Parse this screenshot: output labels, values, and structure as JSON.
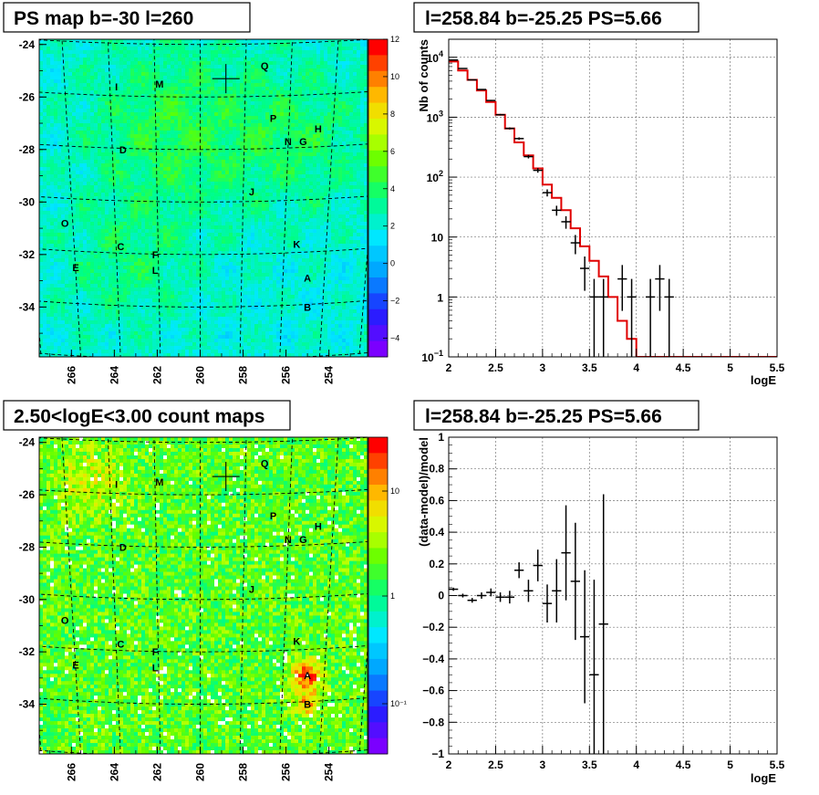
{
  "chart_data": [
    {
      "type": "heatmap",
      "title": "PS map b=-30 l=260",
      "x_ticks": [
        "266",
        "264",
        "262",
        "260",
        "258",
        "256",
        "254"
      ],
      "y_ticks": [
        "-24",
        "-26",
        "-28",
        "-30",
        "-32",
        "-34"
      ],
      "xlim": [
        267.5,
        252.2
      ],
      "ylim": [
        -35.9,
        -23.8
      ],
      "z_ticks": [
        "12",
        "10",
        "8",
        "6",
        "4",
        "2",
        "0",
        "−2",
        "−4"
      ],
      "zlim": [
        -5,
        12
      ],
      "crosshair": {
        "x": 258.8,
        "y": -25.3
      },
      "sources": [
        {
          "label": "Q",
          "x": 257.0,
          "y": -24.8
        },
        {
          "label": "I",
          "x": 263.9,
          "y": -25.6
        },
        {
          "label": "M",
          "x": 261.9,
          "y": -25.5
        },
        {
          "label": "P",
          "x": 256.6,
          "y": -26.8
        },
        {
          "label": "H",
          "x": 254.5,
          "y": -27.2
        },
        {
          "label": "N",
          "x": 255.9,
          "y": -27.7
        },
        {
          "label": "G",
          "x": 255.2,
          "y": -27.7
        },
        {
          "label": "D",
          "x": 263.6,
          "y": -28.0
        },
        {
          "label": "J",
          "x": 257.6,
          "y": -29.6
        },
        {
          "label": "O",
          "x": 266.3,
          "y": -30.8
        },
        {
          "label": "C",
          "x": 263.7,
          "y": -31.7
        },
        {
          "label": "K",
          "x": 255.5,
          "y": -31.6
        },
        {
          "label": "F",
          "x": 262.1,
          "y": -32.0
        },
        {
          "label": "E",
          "x": 265.8,
          "y": -32.5
        },
        {
          "label": "L",
          "x": 262.1,
          "y": -32.6
        },
        {
          "label": "A",
          "x": 255.0,
          "y": -32.9
        },
        {
          "label": "B",
          "x": 255.0,
          "y": -34.0
        }
      ]
    },
    {
      "type": "line",
      "title": "l=258.84 b=-25.25 PS=5.66",
      "xlabel": "logE",
      "ylabel": "Nb of counts",
      "xlim": [
        2,
        5.5
      ],
      "ylim": [
        0.1,
        20000
      ],
      "yscale": "log",
      "grid": true,
      "x_ticks": [
        "2",
        "2.5",
        "3",
        "3.5",
        "4",
        "4.5",
        "5",
        "5.5"
      ],
      "y_ticks": [
        {
          "v": 10000,
          "b": "10",
          "e": "4"
        },
        {
          "v": 1000,
          "b": "10",
          "e": "3"
        },
        {
          "v": 100,
          "b": "10",
          "e": "2"
        },
        {
          "v": 10,
          "b": "10",
          "e": ""
        },
        {
          "v": 1,
          "b": "1",
          "e": ""
        },
        {
          "v": 0.1,
          "b": "10",
          "e": "−1"
        }
      ],
      "bin_edges": [
        2.0,
        2.1,
        2.2,
        2.3,
        2.4,
        2.5,
        2.6,
        2.7,
        2.8,
        2.9,
        3.0,
        3.1,
        3.2,
        3.3,
        3.4,
        3.5,
        3.6,
        3.7,
        3.8,
        3.9,
        4.0,
        4.1,
        4.2,
        4.3,
        4.4,
        4.5,
        4.6,
        4.7,
        4.8,
        4.9,
        5.0,
        5.1,
        5.2,
        5.3,
        5.4,
        5.5
      ],
      "series": [
        {
          "kind": "model",
          "color": "#e00000",
          "values": [
            8500,
            6000,
            4200,
            2800,
            1800,
            1100,
            650,
            380,
            230,
            140,
            75,
            45,
            28,
            14,
            7,
            4,
            2.2,
            1,
            0.4,
            0.2,
            0.1,
            0.1,
            0.1,
            0.1,
            0.1,
            0.1,
            0.1,
            0.1,
            0.1,
            0.1,
            0.1,
            0.1,
            0.1,
            0.1,
            0.1
          ]
        },
        {
          "kind": "data",
          "color": "#000000",
          "points": [
            {
              "x": 2.05,
              "y": 9000
            },
            {
              "x": 2.15,
              "y": 6500
            },
            {
              "x": 2.25,
              "y": 4200
            },
            {
              "x": 2.35,
              "y": 2900
            },
            {
              "x": 2.45,
              "y": 1900
            },
            {
              "x": 2.55,
              "y": 1100
            },
            {
              "x": 2.65,
              "y": 650
            },
            {
              "x": 2.75,
              "y": 440
            },
            {
              "x": 2.85,
              "y": 220
            },
            {
              "x": 2.95,
              "y": 130
            },
            {
              "x": 3.05,
              "y": 55
            },
            {
              "x": 3.15,
              "y": 28
            },
            {
              "x": 3.25,
              "y": 18
            },
            {
              "x": 3.35,
              "y": 8
            },
            {
              "x": 3.45,
              "y": 3
            },
            {
              "x": 3.55,
              "y": 1
            },
            {
              "x": 3.65,
              "y": 1
            },
            {
              "x": 3.85,
              "y": 2
            },
            {
              "x": 3.95,
              "y": 1
            },
            {
              "x": 4.15,
              "y": 1
            },
            {
              "x": 4.25,
              "y": 2
            },
            {
              "x": 4.35,
              "y": 1
            }
          ]
        }
      ]
    },
    {
      "type": "heatmap",
      "title": "2.50<logE<3.00 count maps",
      "x_ticks": [
        "266",
        "264",
        "262",
        "260",
        "258",
        "256",
        "254"
      ],
      "y_ticks": [
        "-24",
        "-26",
        "-28",
        "-30",
        "-32",
        "-34"
      ],
      "xlim": [
        267.5,
        252.2
      ],
      "ylim": [
        -35.9,
        -23.8
      ],
      "z_ticks": [
        "10",
        "1",
        "10⁻¹"
      ],
      "zscale": "log",
      "crosshair": {
        "x": 258.8,
        "y": -25.3
      },
      "sources": [
        {
          "label": "Q",
          "x": 257.0,
          "y": -24.8
        },
        {
          "label": "I",
          "x": 263.9,
          "y": -25.6
        },
        {
          "label": "M",
          "x": 261.9,
          "y": -25.5
        },
        {
          "label": "P",
          "x": 256.6,
          "y": -26.8
        },
        {
          "label": "H",
          "x": 254.5,
          "y": -27.2
        },
        {
          "label": "N",
          "x": 255.9,
          "y": -27.7
        },
        {
          "label": "G",
          "x": 255.2,
          "y": -27.7
        },
        {
          "label": "D",
          "x": 263.6,
          "y": -28.0
        },
        {
          "label": "J",
          "x": 257.6,
          "y": -29.6
        },
        {
          "label": "O",
          "x": 266.3,
          "y": -30.8
        },
        {
          "label": "C",
          "x": 263.7,
          "y": -31.7
        },
        {
          "label": "K",
          "x": 255.5,
          "y": -31.6
        },
        {
          "label": "F",
          "x": 262.1,
          "y": -32.0
        },
        {
          "label": "E",
          "x": 265.8,
          "y": -32.5
        },
        {
          "label": "L",
          "x": 262.1,
          "y": -32.6
        },
        {
          "label": "A",
          "x": 255.0,
          "y": -32.9
        },
        {
          "label": "B",
          "x": 255.0,
          "y": -34.0
        }
      ]
    },
    {
      "type": "scatter",
      "title": "l=258.84 b=-25.25 PS=5.66",
      "xlabel": "logE",
      "ylabel": "(data-model)/model",
      "xlim": [
        2,
        5.5
      ],
      "ylim": [
        -1,
        1
      ],
      "grid": true,
      "x_ticks": [
        "2",
        "2.5",
        "3",
        "3.5",
        "4",
        "4.5",
        "5",
        "5.5"
      ],
      "y_ticks": [
        "1",
        "0.8",
        "0.6",
        "0.4",
        "0.2",
        "0",
        "−0.2",
        "−0.4",
        "−0.6",
        "−0.8",
        "−1"
      ],
      "points": [
        {
          "x": 2.05,
          "y": 0.04,
          "err": 0.01
        },
        {
          "x": 2.15,
          "y": 0.0,
          "err": 0.012
        },
        {
          "x": 2.25,
          "y": -0.03,
          "err": 0.015
        },
        {
          "x": 2.35,
          "y": 0.0,
          "err": 0.02
        },
        {
          "x": 2.45,
          "y": 0.02,
          "err": 0.025
        },
        {
          "x": 2.55,
          "y": -0.01,
          "err": 0.03
        },
        {
          "x": 2.65,
          "y": -0.01,
          "err": 0.04
        },
        {
          "x": 2.75,
          "y": 0.16,
          "err": 0.05
        },
        {
          "x": 2.85,
          "y": 0.03,
          "err": 0.07
        },
        {
          "x": 2.95,
          "y": 0.19,
          "err": 0.1
        },
        {
          "x": 3.05,
          "y": -0.05,
          "err": 0.12
        },
        {
          "x": 3.15,
          "y": 0.03,
          "err": 0.2
        },
        {
          "x": 3.25,
          "y": 0.27,
          "err": 0.3
        },
        {
          "x": 3.35,
          "y": 0.09,
          "err": 0.37
        },
        {
          "x": 3.45,
          "y": -0.26,
          "err": 0.42
        },
        {
          "x": 3.55,
          "y": -0.5,
          "err": 0.6
        },
        {
          "x": 3.65,
          "y": -0.18,
          "err": 0.82
        }
      ]
    }
  ]
}
